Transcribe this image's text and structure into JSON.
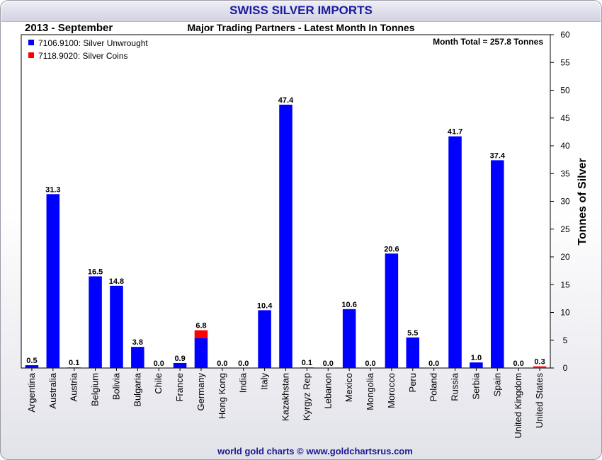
{
  "header": {
    "title": "SWISS SILVER IMPORTS",
    "period": "2013 - September",
    "subtitle": "Major Trading Partners - Latest Month In Tonnes"
  },
  "footer": {
    "credit": "world gold charts © www.goldchartsrus.com"
  },
  "colors": {
    "unwrought": "#0000ff",
    "coins": "#ff0000",
    "title": "#1a1aa0"
  },
  "chart_data": {
    "type": "bar",
    "stacked": true,
    "categories": [
      "Argentina",
      "Australia",
      "Austria",
      "Belgium",
      "Bolivia",
      "Bulgaria",
      "Chile",
      "France",
      "Germany",
      "Hong Kong",
      "India",
      "Italy",
      "Kazakhstan",
      "Kyrgyz Rep",
      "Lebanon",
      "Mexico",
      "Mongolia",
      "Morocco",
      "Peru",
      "Poland",
      "Russia",
      "Serbia",
      "Spain",
      "United Kingdom",
      "United States"
    ],
    "series": [
      {
        "name": "7106.9100: Silver Unwrought",
        "color": "#0000ff",
        "values": [
          0.5,
          31.3,
          0.1,
          16.5,
          14.8,
          3.8,
          0.0,
          0.9,
          5.4,
          0.0,
          0.0,
          10.4,
          47.4,
          0.1,
          0.0,
          10.6,
          0.0,
          20.6,
          5.5,
          0.0,
          41.7,
          1.0,
          37.4,
          0.0,
          0.0
        ]
      },
      {
        "name": "7118.9020: Silver Coins",
        "color": "#ff0000",
        "values": [
          0,
          0,
          0,
          0,
          0,
          0,
          0,
          0,
          1.4,
          0,
          0,
          0,
          0,
          0,
          0,
          0,
          0,
          0,
          0,
          0,
          0,
          0,
          0,
          0,
          0.3
        ]
      }
    ],
    "totals": [
      "0.5",
      "31.3",
      "0.1",
      "16.5",
      "14.8",
      "3.8",
      "0.0",
      "0.9",
      "6.8",
      "0.0",
      "0.0",
      "10.4",
      "47.4",
      "0.1",
      "0.0",
      "10.6",
      "0.0",
      "20.6",
      "5.5",
      "0.0",
      "41.7",
      "1.0",
      "37.4",
      "0.0",
      "0.3"
    ],
    "annotation": "Month Total = 257.8 Tonnes",
    "ylabel": "Tonnes of Silver",
    "xlabel": "",
    "ylim": [
      0,
      60
    ],
    "yticks": [
      0,
      5,
      10,
      15,
      20,
      25,
      30,
      35,
      40,
      45,
      50,
      55,
      60
    ],
    "y_axis_side": "right",
    "grid": false,
    "legend": "top-left"
  }
}
